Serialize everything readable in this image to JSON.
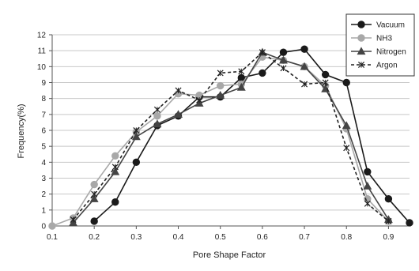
{
  "chart_data": {
    "type": "line",
    "title": "",
    "xlabel": "Pore Shape Factor",
    "ylabel": "Frequency(%)",
    "xlim": [
      0.1,
      0.95
    ],
    "ylim": [
      0,
      12
    ],
    "x_ticks": [
      "0.1",
      "0.2",
      "0.3",
      "0.4",
      "0.5",
      "0.6",
      "0.7",
      "0.8",
      "0.9"
    ],
    "y_ticks": [
      "0",
      "1",
      "2",
      "3",
      "4",
      "5",
      "6",
      "7",
      "8",
      "9",
      "10",
      "11",
      "12"
    ],
    "grid": "horizontal",
    "legend_position": "top-right",
    "series": [
      {
        "name": "Vacuum",
        "color": "#1a1a1a",
        "marker": "circle",
        "dash": "solid",
        "points": [
          [
            0.2,
            0.3
          ],
          [
            0.25,
            1.5
          ],
          [
            0.3,
            4.0
          ],
          [
            0.35,
            6.3
          ],
          [
            0.4,
            6.9
          ],
          [
            0.45,
            8.1
          ],
          [
            0.5,
            8.1
          ],
          [
            0.55,
            9.3
          ],
          [
            0.6,
            9.6
          ],
          [
            0.65,
            10.9
          ],
          [
            0.7,
            11.1
          ],
          [
            0.75,
            9.5
          ],
          [
            0.8,
            9.0
          ],
          [
            0.85,
            3.4
          ],
          [
            0.9,
            1.7
          ],
          [
            0.95,
            0.2
          ]
        ]
      },
      {
        "name": "NH3",
        "color": "#a8a8a8",
        "marker": "circle",
        "dash": "solid",
        "points": [
          [
            0.1,
            0.0
          ],
          [
            0.15,
            0.5
          ],
          [
            0.2,
            2.6
          ],
          [
            0.25,
            4.4
          ],
          [
            0.3,
            5.9
          ],
          [
            0.35,
            6.9
          ],
          [
            0.4,
            8.3
          ],
          [
            0.45,
            8.2
          ],
          [
            0.5,
            8.8
          ],
          [
            0.55,
            8.9
          ],
          [
            0.6,
            10.6
          ],
          [
            0.65,
            10.4
          ],
          [
            0.7,
            10.0
          ],
          [
            0.75,
            8.8
          ],
          [
            0.8,
            6.1
          ],
          [
            0.85,
            1.7
          ],
          [
            0.9,
            0.3
          ]
        ]
      },
      {
        "name": "Nitrogen",
        "color": "#444444",
        "marker": "triangle",
        "dash": "solid",
        "points": [
          [
            0.15,
            0.2
          ],
          [
            0.2,
            1.7
          ],
          [
            0.25,
            3.4
          ],
          [
            0.3,
            5.6
          ],
          [
            0.35,
            6.4
          ],
          [
            0.4,
            7.0
          ],
          [
            0.45,
            7.7
          ],
          [
            0.5,
            8.2
          ],
          [
            0.55,
            8.7
          ],
          [
            0.6,
            10.9
          ],
          [
            0.65,
            10.4
          ],
          [
            0.7,
            10.0
          ],
          [
            0.75,
            8.6
          ],
          [
            0.8,
            6.3
          ],
          [
            0.85,
            2.5
          ],
          [
            0.9,
            0.4
          ]
        ]
      },
      {
        "name": "Argon",
        "color": "#222222",
        "marker": "x",
        "dash": "dashed",
        "points": [
          [
            0.15,
            0.4
          ],
          [
            0.2,
            2.0
          ],
          [
            0.25,
            3.7
          ],
          [
            0.3,
            6.0
          ],
          [
            0.35,
            7.3
          ],
          [
            0.4,
            8.5
          ],
          [
            0.45,
            7.9
          ],
          [
            0.5,
            9.6
          ],
          [
            0.55,
            9.7
          ],
          [
            0.6,
            10.9
          ],
          [
            0.65,
            9.9
          ],
          [
            0.7,
            8.9
          ],
          [
            0.75,
            9.0
          ],
          [
            0.8,
            4.9
          ],
          [
            0.85,
            1.4
          ],
          [
            0.9,
            0.3
          ]
        ]
      }
    ]
  }
}
